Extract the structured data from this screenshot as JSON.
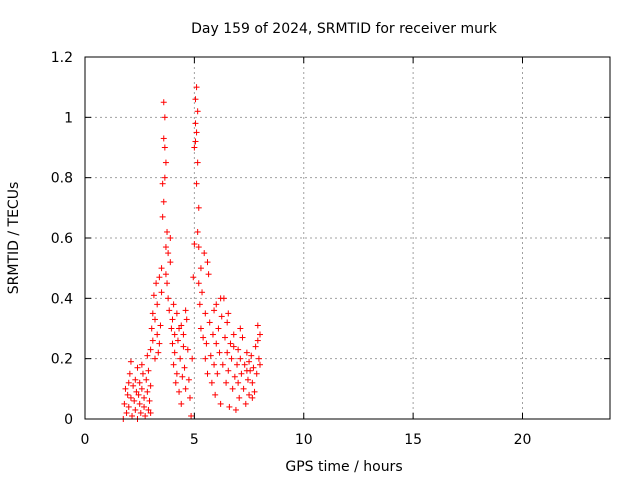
{
  "chart_data": {
    "type": "scatter",
    "title": "Day 159 of 2024, SRMTID for receiver murk",
    "xlabel": "GPS time / hours",
    "ylabel": "SRMTID / TECUs",
    "xlim": [
      0,
      24
    ],
    "ylim": [
      0,
      1.2
    ],
    "xticks": [
      0,
      5,
      10,
      15,
      20
    ],
    "yticks": [
      0,
      0.2,
      0.4,
      0.6,
      0.8,
      1,
      1.2
    ],
    "ytick_labels": [
      "0",
      "0.2",
      "0.4",
      "0.6",
      "0.8",
      "1",
      "1.2"
    ],
    "grid": true,
    "marker": "+",
    "color": "#ff0000",
    "series": [
      {
        "points": [
          [
            1.75,
            0.0
          ],
          [
            1.8,
            0.05
          ],
          [
            1.85,
            0.1
          ],
          [
            1.9,
            0.02
          ],
          [
            1.95,
            0.08
          ],
          [
            2.0,
            0.12
          ],
          [
            2.0,
            0.04
          ],
          [
            2.05,
            0.15
          ],
          [
            2.1,
            0.19
          ],
          [
            2.1,
            0.07
          ],
          [
            2.15,
            0.01
          ],
          [
            2.2,
            0.11
          ],
          [
            2.25,
            0.06
          ],
          [
            2.3,
            0.13
          ],
          [
            2.3,
            0.03
          ],
          [
            2.35,
            0.09
          ],
          [
            2.4,
            0.17
          ],
          [
            2.4,
            0.0
          ],
          [
            2.45,
            0.08
          ],
          [
            2.5,
            0.05
          ],
          [
            2.5,
            0.12
          ],
          [
            2.55,
            0.02
          ],
          [
            2.6,
            0.1
          ],
          [
            2.65,
            0.15
          ],
          [
            2.7,
            0.04
          ],
          [
            2.7,
            0.07
          ],
          [
            2.75,
            0.01
          ],
          [
            2.8,
            0.13
          ],
          [
            2.85,
            0.09
          ],
          [
            2.9,
            0.03
          ],
          [
            2.9,
            0.16
          ],
          [
            2.95,
            0.06
          ],
          [
            3.0,
            0.11
          ],
          [
            3.0,
            0.02
          ],
          [
            3.0,
            0.23
          ],
          [
            3.05,
            0.3
          ],
          [
            3.1,
            0.35
          ],
          [
            3.1,
            0.26
          ],
          [
            3.15,
            0.41
          ],
          [
            3.2,
            0.33
          ],
          [
            3.2,
            0.2
          ],
          [
            3.25,
            0.45
          ],
          [
            3.3,
            0.38
          ],
          [
            3.3,
            0.28
          ],
          [
            3.35,
            0.22
          ],
          [
            3.4,
            0.47
          ],
          [
            3.45,
            0.31
          ],
          [
            3.5,
            0.5
          ],
          [
            3.5,
            0.42
          ],
          [
            3.55,
            0.67
          ],
          [
            3.55,
            0.78
          ],
          [
            3.6,
            0.93
          ],
          [
            3.6,
            1.05
          ],
          [
            3.65,
            1.0
          ],
          [
            3.65,
            0.9
          ],
          [
            3.7,
            0.57
          ],
          [
            3.7,
            0.48
          ],
          [
            3.75,
            0.62
          ],
          [
            3.8,
            0.55
          ],
          [
            3.8,
            0.4
          ],
          [
            3.85,
            0.36
          ],
          [
            3.9,
            0.52
          ],
          [
            3.9,
            0.6
          ],
          [
            3.95,
            0.3
          ],
          [
            4.0,
            0.25
          ],
          [
            4.0,
            0.33
          ],
          [
            4.05,
            0.18
          ],
          [
            4.1,
            0.28
          ],
          [
            4.1,
            0.22
          ],
          [
            4.15,
            0.12
          ],
          [
            4.2,
            0.35
          ],
          [
            4.2,
            0.15
          ],
          [
            4.25,
            0.26
          ],
          [
            4.3,
            0.09
          ],
          [
            4.35,
            0.2
          ],
          [
            4.4,
            0.31
          ],
          [
            4.4,
            0.05
          ],
          [
            4.45,
            0.14
          ],
          [
            4.5,
            0.28
          ],
          [
            4.5,
            0.24
          ],
          [
            4.55,
            0.17
          ],
          [
            4.6,
            0.1
          ],
          [
            4.65,
            0.33
          ],
          [
            4.7,
            0.23
          ],
          [
            4.75,
            0.13
          ],
          [
            4.8,
            0.07
          ],
          [
            4.85,
            0.01
          ],
          [
            4.9,
            0.2
          ],
          [
            4.95,
            0.47
          ],
          [
            5.0,
            0.58
          ],
          [
            5.0,
            0.9
          ],
          [
            5.05,
            0.98
          ],
          [
            5.05,
            1.06
          ],
          [
            5.1,
            1.1
          ],
          [
            5.1,
            0.95
          ],
          [
            5.15,
            0.85
          ],
          [
            5.15,
            1.02
          ],
          [
            5.2,
            0.57
          ],
          [
            5.2,
            0.45
          ],
          [
            5.25,
            0.38
          ],
          [
            5.3,
            0.3
          ],
          [
            5.3,
            0.5
          ],
          [
            5.35,
            0.42
          ],
          [
            5.4,
            0.27
          ],
          [
            5.45,
            0.55
          ],
          [
            5.5,
            0.35
          ],
          [
            5.5,
            0.2
          ],
          [
            5.55,
            0.25
          ],
          [
            5.6,
            0.15
          ],
          [
            5.65,
            0.48
          ],
          [
            5.7,
            0.32
          ],
          [
            5.75,
            0.21
          ],
          [
            5.8,
            0.12
          ],
          [
            5.85,
            0.28
          ],
          [
            5.9,
            0.18
          ],
          [
            5.95,
            0.08
          ],
          [
            6.0,
            0.25
          ],
          [
            6.0,
            0.38
          ],
          [
            6.05,
            0.15
          ],
          [
            6.1,
            0.3
          ],
          [
            6.15,
            0.22
          ],
          [
            6.2,
            0.05
          ],
          [
            6.25,
            0.34
          ],
          [
            6.3,
            0.18
          ],
          [
            6.35,
            0.4
          ],
          [
            6.4,
            0.27
          ],
          [
            6.45,
            0.12
          ],
          [
            6.5,
            0.32
          ],
          [
            6.5,
            0.22
          ],
          [
            6.55,
            0.16
          ],
          [
            6.6,
            0.04
          ],
          [
            6.65,
            0.25
          ],
          [
            6.7,
            0.2
          ],
          [
            6.75,
            0.1
          ],
          [
            6.8,
            0.28
          ],
          [
            6.85,
            0.14
          ],
          [
            6.9,
            0.03
          ],
          [
            6.95,
            0.18
          ],
          [
            7.0,
            0.23
          ],
          [
            7.0,
            0.12
          ],
          [
            7.05,
            0.07
          ],
          [
            7.1,
            0.2
          ],
          [
            7.15,
            0.15
          ],
          [
            7.2,
            0.27
          ],
          [
            7.25,
            0.1
          ],
          [
            7.3,
            0.18
          ],
          [
            7.35,
            0.05
          ],
          [
            7.4,
            0.22
          ],
          [
            7.45,
            0.13
          ],
          [
            7.5,
            0.19
          ],
          [
            7.5,
            0.08
          ],
          [
            7.55,
            0.16
          ],
          [
            7.6,
            0.21
          ],
          [
            7.65,
            0.12
          ],
          [
            7.7,
            0.17
          ],
          [
            7.75,
            0.09
          ],
          [
            7.8,
            0.24
          ],
          [
            7.85,
            0.15
          ],
          [
            7.9,
            0.31
          ],
          [
            7.9,
            0.26
          ],
          [
            7.95,
            0.2
          ],
          [
            8.0,
            0.28
          ],
          [
            8.0,
            0.18
          ],
          [
            2.6,
            0.18
          ],
          [
            2.85,
            0.21
          ],
          [
            3.4,
            0.25
          ],
          [
            3.75,
            0.45
          ],
          [
            4.05,
            0.38
          ],
          [
            4.3,
            0.3
          ],
          [
            4.6,
            0.36
          ],
          [
            5.6,
            0.52
          ],
          [
            5.9,
            0.36
          ],
          [
            6.2,
            0.4
          ],
          [
            6.55,
            0.35
          ],
          [
            6.8,
            0.24
          ],
          [
            7.1,
            0.3
          ],
          [
            7.4,
            0.16
          ],
          [
            7.65,
            0.07
          ],
          [
            3.6,
            0.72
          ],
          [
            3.65,
            0.8
          ],
          [
            5.05,
            0.92
          ],
          [
            5.1,
            0.78
          ],
          [
            5.15,
            0.62
          ],
          [
            3.7,
            0.85
          ],
          [
            5.2,
            0.7
          ]
        ]
      }
    ]
  }
}
